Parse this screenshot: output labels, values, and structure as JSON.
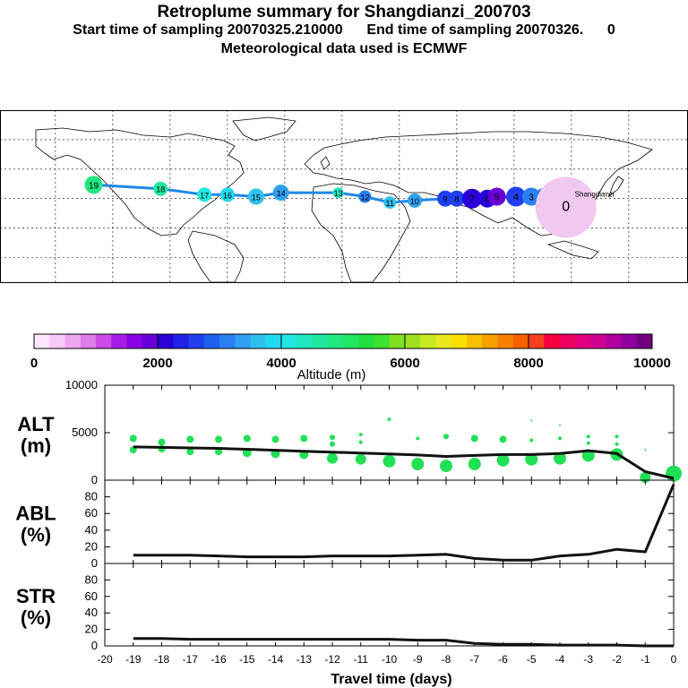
{
  "header": {
    "title": "Retroplume summary for Shangdianzi_200703",
    "line2": "Start time of sampling 20070325.210000      End time of sampling 20070326.      0",
    "line3": "Meteorological data used is ECMWF"
  },
  "colorbar": {
    "label": "Altitude (m)",
    "tick_labels": [
      "0",
      "2000",
      "4000",
      "6000",
      "8000",
      "10000"
    ],
    "ticks": [
      0,
      2000,
      4000,
      6000,
      8000,
      10000
    ],
    "colors": [
      "#ffe6ff",
      "#f8c8f8",
      "#eea6f0",
      "#e07ce8",
      "#cc4ae6",
      "#a81ee6",
      "#8a00e6",
      "#6a00d8",
      "#2a00d8",
      "#2020e6",
      "#2040f0",
      "#2060f0",
      "#2a80f0",
      "#30a0f0",
      "#30c0f0",
      "#20d8f0",
      "#20e8e0",
      "#20e8c0",
      "#20e8a0",
      "#20e880",
      "#20e860",
      "#20e040",
      "#40e030",
      "#80e020",
      "#a0e020",
      "#c8e820",
      "#e8e820",
      "#f8e000",
      "#f8c000",
      "#f8a000",
      "#f88000",
      "#f86000",
      "#f84020",
      "#f80040",
      "#f00060",
      "#e00080",
      "#d00090",
      "#b000a0",
      "#9000a0",
      "#700080"
    ]
  },
  "map": {
    "site_label": "Shangdianzi",
    "label_color": "#000000",
    "trajectory_color": "#1e88e5",
    "points": [
      {
        "lon": 117.1,
        "lat": 40.6,
        "day": 0,
        "alt": 100,
        "color": "#f0c8f0",
        "size": 34
      },
      {
        "lon": 112,
        "lat": 44,
        "day": 1,
        "alt": 700,
        "color": "#cc4ae6",
        "size": 12
      },
      {
        "lon": 106,
        "lat": 45,
        "day": 2,
        "alt": 2600,
        "color": "#2a80f0",
        "size": 12
      },
      {
        "lon": 99,
        "lat": 46,
        "day": 3,
        "alt": 2700,
        "color": "#2a80f0",
        "size": 10
      },
      {
        "lon": 91,
        "lat": 46,
        "day": 4,
        "alt": 2200,
        "color": "#2040f0",
        "size": 11
      },
      {
        "lon": 81,
        "lat": 46,
        "day": 5,
        "alt": 2000,
        "color": "#6a00d8",
        "size": 10
      },
      {
        "lon": 76,
        "lat": 45,
        "day": 6,
        "alt": 2100,
        "color": "#2a00d8",
        "size": 10
      },
      {
        "lon": 68,
        "lat": 45,
        "day": 7,
        "alt": 2000,
        "color": "#2a00d8",
        "size": 11
      },
      {
        "lon": 60,
        "lat": 45,
        "day": 8,
        "alt": 2200,
        "color": "#2040f0",
        "size": 9
      },
      {
        "lon": 54,
        "lat": 45,
        "day": 9,
        "alt": 2300,
        "color": "#2040f0",
        "size": 9
      },
      {
        "lon": 38,
        "lat": 44,
        "day": 10,
        "alt": 2800,
        "color": "#30a0f0",
        "size": 8
      },
      {
        "lon": 25,
        "lat": 43,
        "day": 11,
        "alt": 3000,
        "color": "#30c0f0",
        "size": 7
      },
      {
        "lon": 12,
        "lat": 46,
        "day": 12,
        "alt": 2500,
        "color": "#2a80f0",
        "size": 7
      },
      {
        "lon": -2,
        "lat": 48,
        "day": 13,
        "alt": 3500,
        "color": "#20e8c0",
        "size": 6
      },
      {
        "lon": -32,
        "lat": 48,
        "day": 14,
        "alt": 3000,
        "color": "#30a0f0",
        "size": 9
      },
      {
        "lon": -45,
        "lat": 46,
        "day": 15,
        "alt": 3200,
        "color": "#30c0f0",
        "size": 9
      },
      {
        "lon": -60,
        "lat": 47,
        "day": 16,
        "alt": 3300,
        "color": "#20d8f0",
        "size": 8
      },
      {
        "lon": -72,
        "lat": 47,
        "day": 17,
        "alt": 3400,
        "color": "#20e8e0",
        "size": 8
      },
      {
        "lon": -95,
        "lat": 50,
        "day": 18,
        "alt": 3600,
        "color": "#20e8a0",
        "size": 8
      },
      {
        "lon": -130,
        "lat": 52,
        "day": 19,
        "alt": 3700,
        "color": "#20e880",
        "size": 10
      }
    ]
  },
  "chart_data": [
    {
      "type": "line",
      "title": "ALT (m)",
      "panel_label_line1": "ALT",
      "panel_label_line2": "(m)",
      "ylim": [
        0,
        10000
      ],
      "yticks": [
        0,
        5000,
        10000
      ],
      "ytick_labels": [
        "0",
        "5000",
        "10000"
      ],
      "x": [
        -19,
        -18,
        -17,
        -16,
        -15,
        -14,
        -13,
        -12,
        -11,
        -10,
        -9,
        -8,
        -7,
        -6,
        -5,
        -4,
        -3,
        -2,
        -1,
        0
      ],
      "mean": [
        3500,
        3450,
        3400,
        3350,
        3250,
        3150,
        3050,
        2950,
        2850,
        2750,
        2650,
        2500,
        2600,
        2700,
        2700,
        2800,
        3100,
        2800,
        900,
        200
      ],
      "scatter_color": "#22e055",
      "scatter": [
        {
          "x": -19,
          "y": 4400,
          "r": 4
        },
        {
          "x": -19,
          "y": 3200,
          "r": 4
        },
        {
          "x": -18,
          "y": 4000,
          "r": 4
        },
        {
          "x": -18,
          "y": 3300,
          "r": 4
        },
        {
          "x": -17,
          "y": 4300,
          "r": 4
        },
        {
          "x": -17,
          "y": 3000,
          "r": 4
        },
        {
          "x": -16,
          "y": 4300,
          "r": 4
        },
        {
          "x": -16,
          "y": 3000,
          "r": 4
        },
        {
          "x": -15,
          "y": 4400,
          "r": 4
        },
        {
          "x": -15,
          "y": 2900,
          "r": 5
        },
        {
          "x": -14,
          "y": 4300,
          "r": 4
        },
        {
          "x": -14,
          "y": 2800,
          "r": 5
        },
        {
          "x": -13,
          "y": 4400,
          "r": 4
        },
        {
          "x": -13,
          "y": 2700,
          "r": 5
        },
        {
          "x": -12,
          "y": 4500,
          "r": 3
        },
        {
          "x": -12,
          "y": 3800,
          "r": 3
        },
        {
          "x": -12,
          "y": 2300,
          "r": 6
        },
        {
          "x": -11,
          "y": 4800,
          "r": 2
        },
        {
          "x": -11,
          "y": 4000,
          "r": 2
        },
        {
          "x": -11,
          "y": 2200,
          "r": 6
        },
        {
          "x": -10,
          "y": 6400,
          "r": 2
        },
        {
          "x": -10,
          "y": 2000,
          "r": 7
        },
        {
          "x": -9,
          "y": 4400,
          "r": 2
        },
        {
          "x": -9,
          "y": 1700,
          "r": 7
        },
        {
          "x": -8,
          "y": 4600,
          "r": 3
        },
        {
          "x": -8,
          "y": 1500,
          "r": 7
        },
        {
          "x": -7,
          "y": 4400,
          "r": 4
        },
        {
          "x": -7,
          "y": 1700,
          "r": 7
        },
        {
          "x": -6,
          "y": 4300,
          "r": 4
        },
        {
          "x": -6,
          "y": 2100,
          "r": 7
        },
        {
          "x": -5,
          "y": 6300,
          "r": 1
        },
        {
          "x": -5,
          "y": 4200,
          "r": 2
        },
        {
          "x": -5,
          "y": 2200,
          "r": 7
        },
        {
          "x": -4,
          "y": 5800,
          "r": 1
        },
        {
          "x": -4,
          "y": 4400,
          "r": 2
        },
        {
          "x": -4,
          "y": 2300,
          "r": 7
        },
        {
          "x": -3,
          "y": 4600,
          "r": 2
        },
        {
          "x": -3,
          "y": 3900,
          "r": 2
        },
        {
          "x": -3,
          "y": 2600,
          "r": 7
        },
        {
          "x": -2,
          "y": 4600,
          "r": 2
        },
        {
          "x": -2,
          "y": 3800,
          "r": 2
        },
        {
          "x": -2,
          "y": 2700,
          "r": 7
        },
        {
          "x": -1,
          "y": 3200,
          "r": 1
        },
        {
          "x": -1,
          "y": 300,
          "r": 6
        },
        {
          "x": 0,
          "y": 700,
          "r": 9
        }
      ]
    },
    {
      "type": "line",
      "title": "ABL (%)",
      "panel_label_line1": "ABL",
      "panel_label_line2": "(%)",
      "ylim": [
        0,
        100
      ],
      "yticks": [
        0,
        20,
        40,
        60,
        80
      ],
      "ytick_labels": [
        "0",
        "20",
        "40",
        "60",
        "80"
      ],
      "x": [
        -19,
        -18,
        -17,
        -16,
        -15,
        -14,
        -13,
        -12,
        -11,
        -10,
        -9,
        -8,
        -7,
        -6,
        -5,
        -4,
        -3,
        -2,
        -1,
        0
      ],
      "values": [
        10,
        10,
        10,
        9,
        8,
        8,
        8,
        9,
        9,
        9,
        10,
        11,
        6,
        4,
        4,
        9,
        11,
        17,
        14,
        95
      ]
    },
    {
      "type": "line",
      "title": "STR (%)",
      "panel_label_line1": "STR",
      "panel_label_line2": "(%)",
      "ylim": [
        0,
        100
      ],
      "yticks": [
        0,
        20,
        40,
        60,
        80
      ],
      "ytick_labels": [
        "0",
        "20",
        "40",
        "60",
        "80"
      ],
      "x": [
        -19,
        -18,
        -17,
        -16,
        -15,
        -14,
        -13,
        -12,
        -11,
        -10,
        -9,
        -8,
        -7,
        -6,
        -5,
        -4,
        -3,
        -2,
        -1,
        0
      ],
      "values": [
        9,
        9,
        8,
        8,
        8,
        8,
        8,
        8,
        8,
        8,
        7,
        7,
        3,
        2,
        2,
        1,
        1,
        1,
        0,
        0
      ],
      "xlim": [
        -20,
        0
      ],
      "xticks": [
        -20,
        -19,
        -18,
        -17,
        -16,
        -15,
        -14,
        -13,
        -12,
        -11,
        -10,
        -9,
        -8,
        -7,
        -6,
        -5,
        -4,
        -3,
        -2,
        -1,
        0
      ],
      "xtick_labels": [
        "-20",
        "-19",
        "-18",
        "-17",
        "-16",
        "-15",
        "-14",
        "-13",
        "-12",
        "-11",
        "-10",
        "-9",
        "-8",
        "-7",
        "-6",
        "-5",
        "-4",
        "-3",
        "-2",
        "-1",
        "0"
      ],
      "xlabel": "Travel time (days)"
    }
  ]
}
